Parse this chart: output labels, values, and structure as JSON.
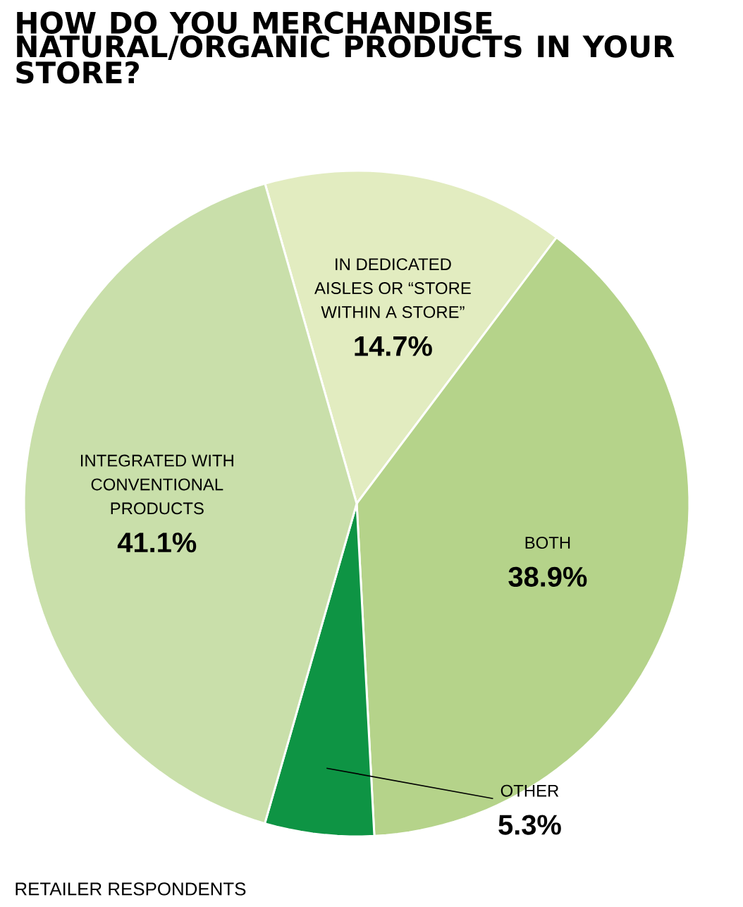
{
  "chart_data": {
    "type": "pie",
    "title": "HOW DO YOU MERCHANDISE NATURAL/ORGANIC PRODUCTS IN YOUR STORE?",
    "categories": [
      "IN DEDICATED AISLES OR “STORE WITHIN A STORE”",
      "BOTH",
      "OTHER",
      "INTEGRATED WITH CONVENTIONAL PRODUCTS"
    ],
    "values": [
      14.7,
      38.9,
      5.3,
      41.1
    ],
    "value_labels": [
      "14.7%",
      "38.9%",
      "5.3%",
      "41.1%"
    ],
    "colors": [
      "#e2ecc0",
      "#b5d38a",
      "#0e9444",
      "#c9dfaa"
    ],
    "annotations": [
      "RETAILER RESPONDENTS"
    ]
  }
}
